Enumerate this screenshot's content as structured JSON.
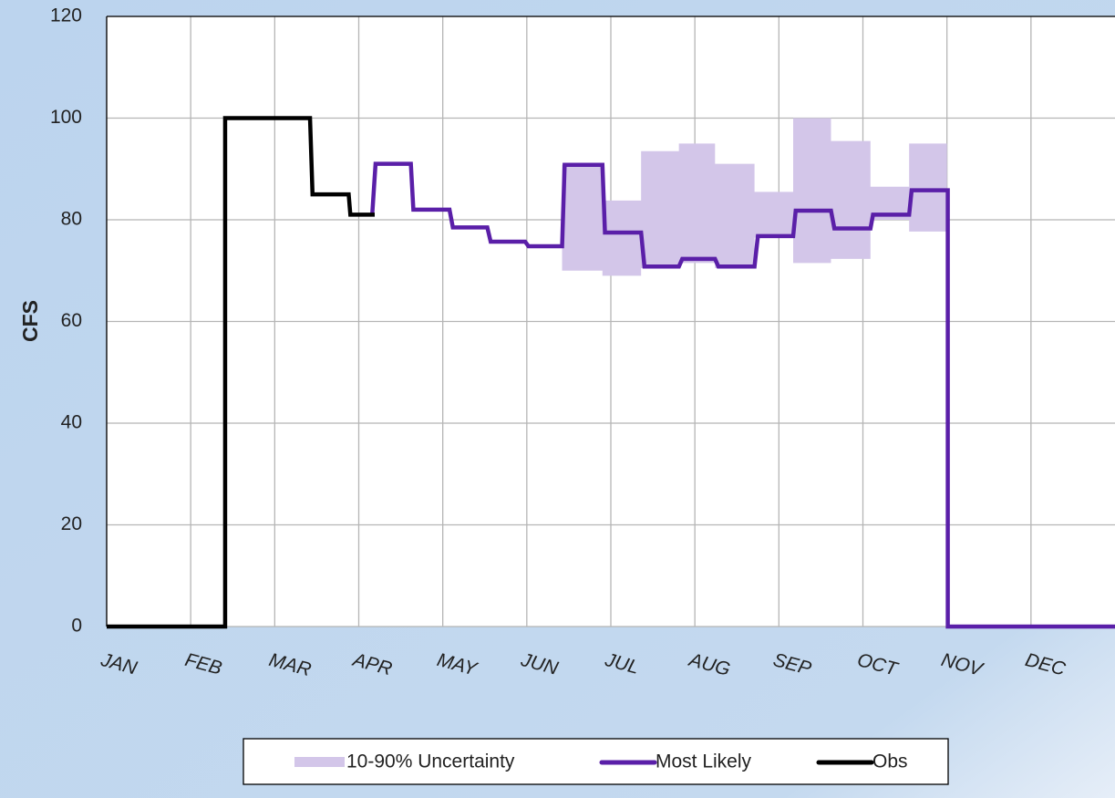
{
  "chart_data": {
    "type": "line",
    "y_label": "CFS",
    "xlim": [
      0,
      12
    ],
    "xticks": [
      {
        "value": 0,
        "label": "JAN"
      },
      {
        "value": 1,
        "label": "FEB"
      },
      {
        "value": 2,
        "label": "MAR"
      },
      {
        "value": 3,
        "label": "APR"
      },
      {
        "value": 4,
        "label": "MAY"
      },
      {
        "value": 5,
        "label": "JUN"
      },
      {
        "value": 6,
        "label": "JUL"
      },
      {
        "value": 7,
        "label": "AUG"
      },
      {
        "value": 8,
        "label": "SEP"
      },
      {
        "value": 9,
        "label": "OCT"
      },
      {
        "value": 10,
        "label": "NOV"
      },
      {
        "value": 11,
        "label": "DEC"
      }
    ],
    "ylim": [
      0,
      120
    ],
    "yticks": [
      0,
      20,
      40,
      60,
      80,
      100,
      120
    ],
    "grid": true,
    "legend": "bottom",
    "band": {
      "name": "10-90% Uncertainty",
      "color": "#d3c6e9",
      "x": [
        5.42,
        5.9,
        5.9,
        6.36,
        6.36,
        6.81,
        6.81,
        7.24,
        7.24,
        7.71,
        7.71,
        8.17,
        8.17,
        8.62,
        8.62,
        9.09,
        9.09,
        9.55,
        9.55,
        10.0
      ],
      "high": [
        90.8,
        90.8,
        83.8,
        83.8,
        93.5,
        93.5,
        95,
        95,
        91,
        91,
        85.5,
        85.5,
        100,
        100,
        95.5,
        95.5,
        86.5,
        86.5,
        95,
        95
      ],
      "low": [
        70,
        70,
        69,
        69,
        70.5,
        70.5,
        71.5,
        71.5,
        70.5,
        70.5,
        76.5,
        76.5,
        71.5,
        71.5,
        72.3,
        72.3,
        80,
        80,
        77.7,
        77.7
      ]
    },
    "series": [
      {
        "name": "Most Likely",
        "color": "#5a1fa8",
        "x": [
          3.16,
          3.2,
          3.62,
          3.65,
          4.08,
          4.12,
          4.53,
          4.57,
          4.98,
          5.02,
          5.42,
          5.45,
          5.9,
          5.93,
          6.36,
          6.4,
          6.81,
          6.85,
          7.24,
          7.28,
          7.71,
          7.75,
          8.17,
          8.2,
          8.62,
          8.66,
          9.09,
          9.12,
          9.55,
          9.58,
          10.01,
          10.01,
          12
        ],
        "values": [
          81,
          91,
          91,
          82,
          82,
          78.5,
          78.5,
          75.7,
          75.7,
          74.8,
          74.8,
          90.8,
          90.8,
          77.5,
          77.5,
          70.8,
          70.8,
          72.3,
          72.3,
          70.8,
          70.8,
          76.8,
          76.8,
          81.8,
          81.8,
          78.3,
          78.3,
          81,
          81,
          85.8,
          85.8,
          0,
          0
        ]
      },
      {
        "name": "Obs",
        "color": "#000000",
        "x": [
          0,
          1.41,
          1.41,
          2.42,
          2.45,
          2.88,
          2.9,
          3.19
        ],
        "values": [
          0,
          0,
          100,
          100,
          85,
          85,
          81,
          81
        ]
      }
    ]
  }
}
